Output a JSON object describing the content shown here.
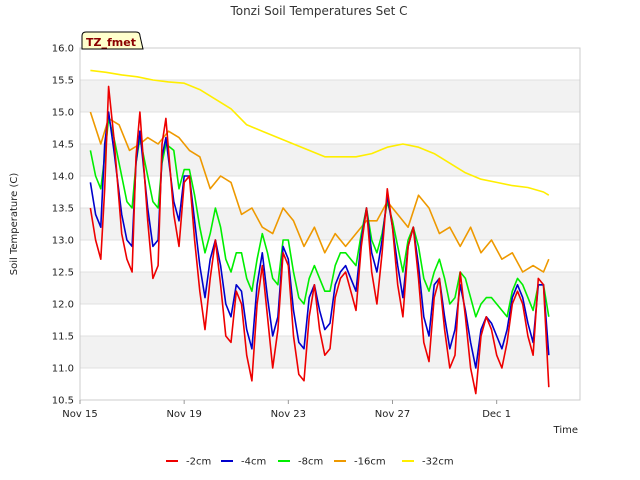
{
  "chart_data": {
    "type": "line",
    "title": "Tonzi Soil Temperatures Set C",
    "xlabel": "Time",
    "ylabel": "Soil Temperature (C)",
    "ylim": [
      10.5,
      16.0
    ],
    "xlim": [
      0,
      19.2
    ],
    "yticks": [
      "10.5",
      "11.0",
      "11.5",
      "12.0",
      "12.5",
      "13.0",
      "13.5",
      "14.0",
      "14.5",
      "15.0",
      "15.5",
      "16.0"
    ],
    "xticks": [
      {
        "label": "Nov 15",
        "day": 0
      },
      {
        "label": "Nov 19",
        "day": 4
      },
      {
        "label": "Nov 23",
        "day": 8
      },
      {
        "label": "Nov 27",
        "day": 12
      },
      {
        "label": "Dec 1",
        "day": 16
      }
    ],
    "badge": "TZ_fmet",
    "legend_position": "bottom",
    "grid": true,
    "series": [
      {
        "name": "-2cm",
        "color": "#ee0000",
        "x": [
          0.4,
          0.6,
          0.8,
          0.95,
          1.1,
          1.3,
          1.6,
          1.8,
          2.0,
          2.15,
          2.3,
          2.6,
          2.8,
          3.0,
          3.15,
          3.3,
          3.6,
          3.8,
          4.0,
          4.2,
          4.4,
          4.6,
          4.8,
          5.0,
          5.2,
          5.4,
          5.6,
          5.8,
          6.0,
          6.2,
          6.4,
          6.6,
          6.8,
          7.0,
          7.2,
          7.4,
          7.6,
          7.8,
          8.0,
          8.2,
          8.4,
          8.6,
          8.8,
          9.0,
          9.2,
          9.4,
          9.6,
          9.8,
          10.0,
          10.2,
          10.4,
          10.6,
          10.8,
          11.0,
          11.2,
          11.4,
          11.6,
          11.8,
          12.0,
          12.2,
          12.4,
          12.6,
          12.8,
          13.0,
          13.2,
          13.4,
          13.6,
          13.8,
          14.0,
          14.2,
          14.4,
          14.6,
          14.8,
          15.0,
          15.2,
          15.4,
          15.6,
          15.8,
          16.0,
          16.2,
          16.4,
          16.6,
          16.8,
          17.0,
          17.2,
          17.4,
          17.6,
          17.8,
          18.0
        ],
        "y": [
          13.5,
          13.0,
          12.7,
          13.8,
          15.4,
          14.6,
          13.1,
          12.7,
          12.5,
          14.3,
          15.0,
          13.3,
          12.4,
          12.6,
          14.5,
          14.9,
          13.4,
          12.9,
          13.9,
          14.0,
          13.0,
          12.2,
          11.6,
          12.4,
          13.0,
          12.3,
          11.5,
          11.4,
          12.2,
          12.0,
          11.2,
          10.8,
          12.0,
          12.6,
          11.8,
          11.0,
          11.6,
          12.8,
          12.6,
          11.5,
          10.9,
          10.8,
          11.8,
          12.3,
          11.6,
          11.2,
          11.3,
          12.1,
          12.4,
          12.5,
          12.2,
          11.9,
          12.9,
          13.5,
          12.5,
          12.0,
          12.8,
          13.8,
          13.2,
          12.3,
          11.8,
          12.9,
          13.2,
          12.4,
          11.4,
          11.1,
          12.1,
          12.4,
          11.6,
          11.0,
          11.2,
          12.5,
          11.8,
          11.0,
          10.6,
          11.5,
          11.8,
          11.6,
          11.2,
          11.0,
          11.4,
          12.0,
          12.2,
          12.0,
          11.5,
          11.2,
          12.4,
          12.3,
          10.7
        ]
      },
      {
        "name": "-4cm",
        "color": "#0000cc",
        "x": [
          0.4,
          0.6,
          0.8,
          0.95,
          1.1,
          1.3,
          1.6,
          1.8,
          2.0,
          2.15,
          2.3,
          2.6,
          2.8,
          3.0,
          3.15,
          3.3,
          3.6,
          3.8,
          4.0,
          4.2,
          4.4,
          4.6,
          4.8,
          5.0,
          5.2,
          5.4,
          5.6,
          5.8,
          6.0,
          6.2,
          6.4,
          6.6,
          6.8,
          7.0,
          7.2,
          7.4,
          7.6,
          7.8,
          8.0,
          8.2,
          8.4,
          8.6,
          8.8,
          9.0,
          9.2,
          9.4,
          9.6,
          9.8,
          10.0,
          10.2,
          10.4,
          10.6,
          10.8,
          11.0,
          11.2,
          11.4,
          11.6,
          11.8,
          12.0,
          12.2,
          12.4,
          12.6,
          12.8,
          13.0,
          13.2,
          13.4,
          13.6,
          13.8,
          14.0,
          14.2,
          14.4,
          14.6,
          14.8,
          15.0,
          15.2,
          15.4,
          15.6,
          15.8,
          16.0,
          16.2,
          16.4,
          16.6,
          16.8,
          17.0,
          17.2,
          17.4,
          17.6,
          17.8,
          18.0
        ],
        "y": [
          13.9,
          13.4,
          13.2,
          14.5,
          15.0,
          14.4,
          13.4,
          13.0,
          12.9,
          14.2,
          14.7,
          13.5,
          12.9,
          13.0,
          14.3,
          14.6,
          13.6,
          13.3,
          14.0,
          14.0,
          13.3,
          12.6,
          12.1,
          12.7,
          13.0,
          12.6,
          12.0,
          11.8,
          12.3,
          12.2,
          11.6,
          11.3,
          12.3,
          12.8,
          12.1,
          11.5,
          11.8,
          12.9,
          12.7,
          11.9,
          11.4,
          11.3,
          12.1,
          12.3,
          11.9,
          11.6,
          11.7,
          12.3,
          12.5,
          12.6,
          12.4,
          12.2,
          13.0,
          13.5,
          12.8,
          12.5,
          13.0,
          13.7,
          13.2,
          12.6,
          12.1,
          12.9,
          13.2,
          12.6,
          11.8,
          11.5,
          12.3,
          12.4,
          11.8,
          11.3,
          11.6,
          12.3,
          11.9,
          11.4,
          11.0,
          11.6,
          11.8,
          11.7,
          11.5,
          11.3,
          11.6,
          12.1,
          12.3,
          12.1,
          11.7,
          11.4,
          12.3,
          12.3,
          11.2
        ]
      },
      {
        "name": "-8cm",
        "color": "#00ee00",
        "x": [
          0.4,
          0.6,
          0.8,
          0.95,
          1.1,
          1.3,
          1.6,
          1.8,
          2.0,
          2.15,
          2.3,
          2.6,
          2.8,
          3.0,
          3.15,
          3.3,
          3.6,
          3.8,
          4.0,
          4.2,
          4.4,
          4.6,
          4.8,
          5.0,
          5.2,
          5.4,
          5.6,
          5.8,
          6.0,
          6.2,
          6.4,
          6.6,
          6.8,
          7.0,
          7.2,
          7.4,
          7.6,
          7.8,
          8.0,
          8.2,
          8.4,
          8.6,
          8.8,
          9.0,
          9.2,
          9.4,
          9.6,
          9.8,
          10.0,
          10.2,
          10.4,
          10.6,
          10.8,
          11.0,
          11.2,
          11.4,
          11.6,
          11.8,
          12.0,
          12.2,
          12.4,
          12.6,
          12.8,
          13.0,
          13.2,
          13.4,
          13.6,
          13.8,
          14.0,
          14.2,
          14.4,
          14.6,
          14.8,
          15.0,
          15.2,
          15.4,
          15.6,
          15.8,
          16.0,
          16.2,
          16.4,
          16.6,
          16.8,
          17.0,
          17.2,
          17.4,
          17.6,
          17.8,
          18.0
        ],
        "y": [
          14.4,
          14.0,
          13.8,
          14.3,
          14.9,
          14.6,
          14.0,
          13.6,
          13.5,
          14.2,
          14.6,
          14.0,
          13.6,
          13.5,
          14.2,
          14.5,
          14.4,
          13.8,
          14.1,
          14.1,
          13.7,
          13.2,
          12.8,
          13.1,
          13.5,
          13.2,
          12.7,
          12.5,
          12.8,
          12.8,
          12.4,
          12.2,
          12.7,
          13.1,
          12.8,
          12.4,
          12.3,
          13.0,
          13.0,
          12.5,
          12.1,
          12.0,
          12.4,
          12.6,
          12.4,
          12.2,
          12.2,
          12.6,
          12.8,
          12.8,
          12.7,
          12.6,
          13.1,
          13.5,
          13.0,
          12.8,
          13.1,
          13.6,
          13.3,
          12.9,
          12.5,
          13.0,
          13.2,
          12.9,
          12.4,
          12.2,
          12.5,
          12.7,
          12.4,
          12.0,
          12.1,
          12.5,
          12.4,
          12.1,
          11.8,
          12.0,
          12.1,
          12.1,
          12.0,
          11.9,
          11.8,
          12.2,
          12.4,
          12.3,
          12.1,
          11.9,
          12.3,
          12.3,
          11.8
        ]
      },
      {
        "name": "-16cm",
        "color": "#ee9900",
        "x": [
          0.4,
          0.8,
          1.1,
          1.5,
          1.9,
          2.3,
          2.6,
          3.0,
          3.4,
          3.8,
          4.2,
          4.6,
          5.0,
          5.4,
          5.8,
          6.2,
          6.6,
          7.0,
          7.4,
          7.8,
          8.2,
          8.6,
          9.0,
          9.4,
          9.8,
          10.2,
          10.6,
          11.0,
          11.4,
          11.8,
          12.2,
          12.6,
          13.0,
          13.4,
          13.8,
          14.2,
          14.6,
          15.0,
          15.4,
          15.8,
          16.2,
          16.6,
          17.0,
          17.4,
          17.8,
          18.0
        ],
        "y": [
          15.0,
          14.5,
          14.9,
          14.8,
          14.4,
          14.5,
          14.6,
          14.5,
          14.7,
          14.6,
          14.4,
          14.3,
          13.8,
          14.0,
          13.9,
          13.4,
          13.5,
          13.2,
          13.1,
          13.5,
          13.3,
          12.9,
          13.2,
          12.8,
          13.1,
          12.9,
          13.1,
          13.3,
          13.3,
          13.6,
          13.4,
          13.2,
          13.7,
          13.5,
          13.1,
          13.2,
          12.9,
          13.2,
          12.8,
          13.0,
          12.7,
          12.8,
          12.5,
          12.6,
          12.5,
          12.7
        ]
      },
      {
        "name": "-32cm",
        "color": "#ffee00",
        "x": [
          0.4,
          1.0,
          1.6,
          2.2,
          2.8,
          3.4,
          4.0,
          4.6,
          5.2,
          5.8,
          6.4,
          7.0,
          7.6,
          8.2,
          8.8,
          9.4,
          10.0,
          10.6,
          11.2,
          11.8,
          12.4,
          13.0,
          13.6,
          14.2,
          14.8,
          15.4,
          16.0,
          16.6,
          17.2,
          17.8,
          18.0
        ],
        "y": [
          15.65,
          15.62,
          15.58,
          15.55,
          15.5,
          15.47,
          15.45,
          15.35,
          15.2,
          15.05,
          14.8,
          14.7,
          14.6,
          14.5,
          14.4,
          14.3,
          14.3,
          14.3,
          14.35,
          14.45,
          14.5,
          14.45,
          14.35,
          14.2,
          14.05,
          13.95,
          13.9,
          13.85,
          13.82,
          13.75,
          13.7
        ]
      }
    ]
  }
}
